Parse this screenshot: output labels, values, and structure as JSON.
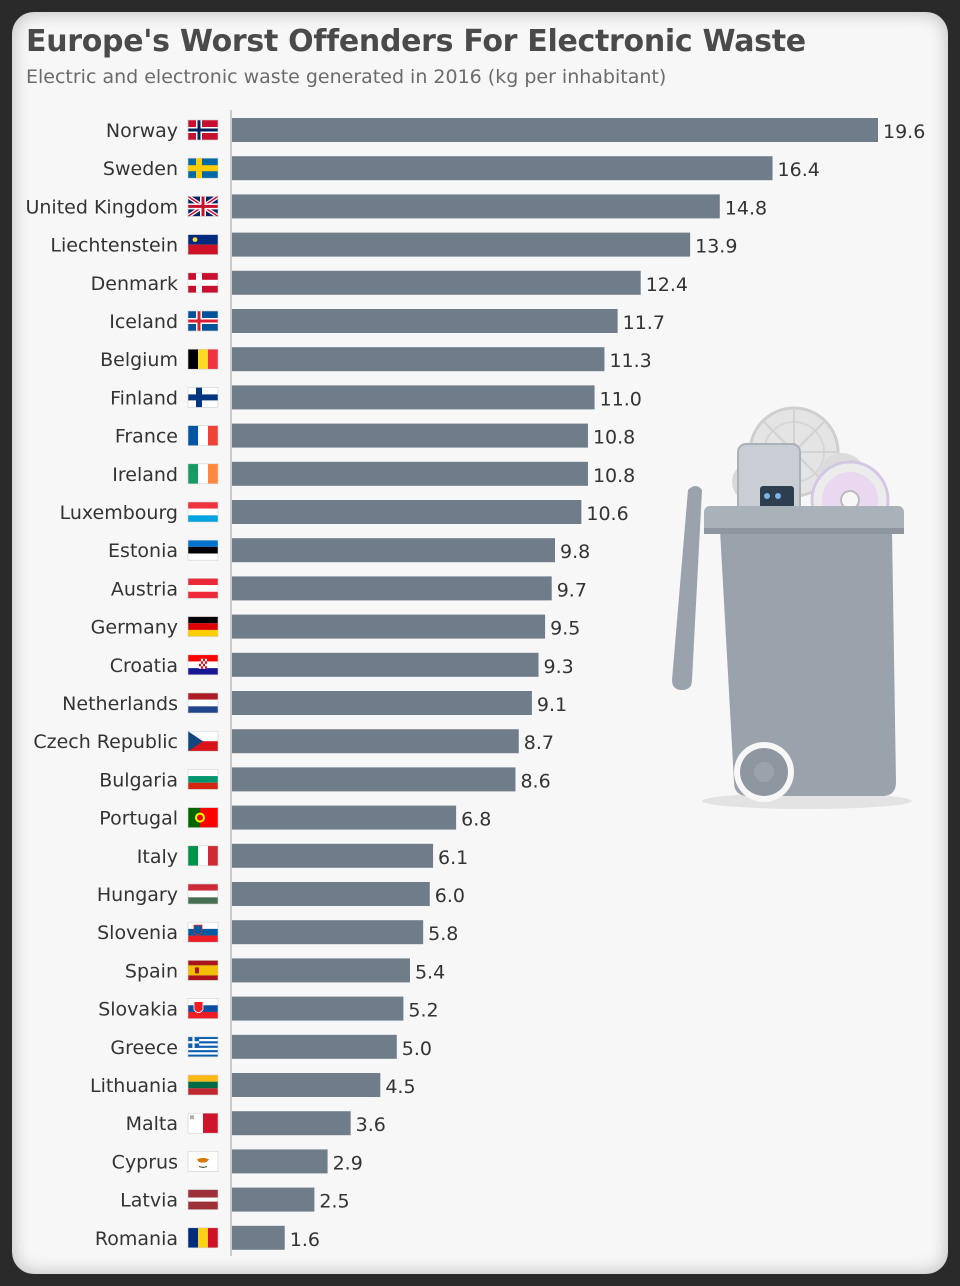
{
  "header": {
    "title": "Europe's Worst Offenders For Electronic Waste",
    "subtitle": "Electric and electronic waste generated in 2016 (kg per inhabitant)"
  },
  "colors": {
    "bar": "#6f7d8a",
    "axis": "#cccccc",
    "bin": "#9aa3ac"
  },
  "chart_data": {
    "type": "bar",
    "orientation": "horizontal",
    "title": "Europe's Worst Offenders For Electronic Waste",
    "subtitle": "Electric and electronic waste generated in 2016 (kg per inhabitant)",
    "categories": [
      "Norway",
      "Sweden",
      "United Kingdom",
      "Liechtenstein",
      "Denmark",
      "Iceland",
      "Belgium",
      "Finland",
      "France",
      "Ireland",
      "Luxembourg",
      "Estonia",
      "Austria",
      "Germany",
      "Croatia",
      "Netherlands",
      "Czech Republic",
      "Bulgaria",
      "Portugal",
      "Italy",
      "Hungary",
      "Slovenia",
      "Spain",
      "Slovakia",
      "Greece",
      "Lithuania",
      "Malta",
      "Cyprus",
      "Latvia",
      "Romania"
    ],
    "values": [
      19.6,
      16.4,
      14.8,
      13.9,
      12.4,
      11.7,
      11.3,
      11.0,
      10.8,
      10.8,
      10.6,
      9.8,
      9.7,
      9.5,
      9.3,
      9.1,
      8.7,
      8.6,
      6.8,
      6.1,
      6.0,
      5.8,
      5.4,
      5.2,
      5.0,
      4.5,
      3.6,
      2.9,
      2.5,
      1.6
    ],
    "value_labels": [
      "19.6",
      "16.4",
      "14.8",
      "13.9",
      "12.4",
      "11.7",
      "11.3",
      "11.0",
      "10.8",
      "10.8",
      "10.6",
      "9.8",
      "9.7",
      "9.5",
      "9.3",
      "9.1",
      "8.7",
      "8.6",
      "6.8",
      "6.1",
      "6.0",
      "5.8",
      "5.4",
      "5.2",
      "5.0",
      "4.5",
      "3.6",
      "2.9",
      "2.5",
      "1.6"
    ],
    "flags": [
      "norway-flag-icon",
      "sweden-flag-icon",
      "united-kingdom-flag-icon",
      "liechtenstein-flag-icon",
      "denmark-flag-icon",
      "iceland-flag-icon",
      "belgium-flag-icon",
      "finland-flag-icon",
      "france-flag-icon",
      "ireland-flag-icon",
      "luxembourg-flag-icon",
      "estonia-flag-icon",
      "austria-flag-icon",
      "germany-flag-icon",
      "croatia-flag-icon",
      "netherlands-flag-icon",
      "czech-republic-flag-icon",
      "bulgaria-flag-icon",
      "portugal-flag-icon",
      "italy-flag-icon",
      "hungary-flag-icon",
      "slovenia-flag-icon",
      "spain-flag-icon",
      "slovakia-flag-icon",
      "greece-flag-icon",
      "lithuania-flag-icon",
      "malta-flag-icon",
      "cyprus-flag-icon",
      "latvia-flag-icon",
      "romania-flag-icon"
    ],
    "xlim": [
      0,
      19.6
    ],
    "grid": false,
    "legend": "none"
  },
  "illustration": "trash-bin-icon"
}
